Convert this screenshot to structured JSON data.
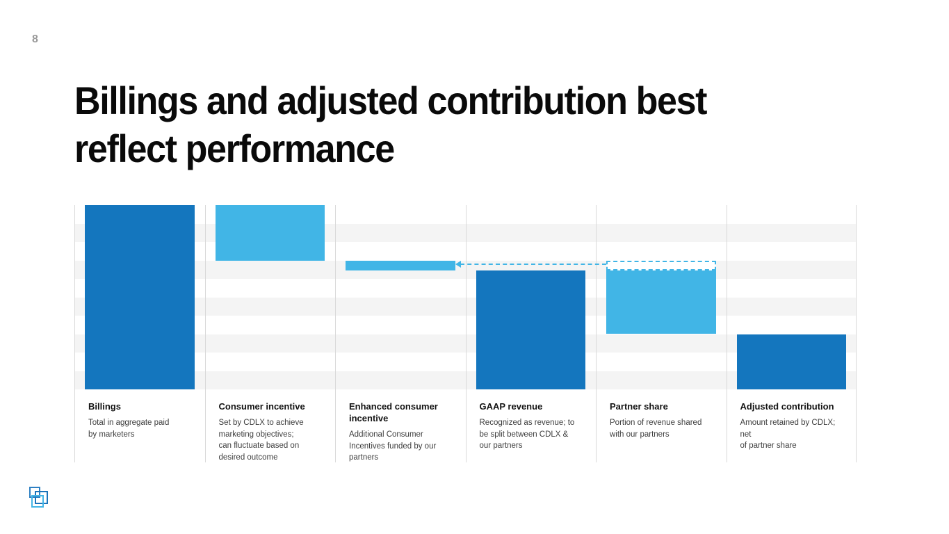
{
  "page_number": "8",
  "title": "Billings and adjusted contribution best\nreflect performance",
  "colors": {
    "dark_blue": "#1476BE",
    "light_blue": "#41B5E6",
    "stripe_gray": "#F4F4F4",
    "divider_gray": "#D9D9D9",
    "title_text": "#0A0A0A",
    "desc_text": "#3D3D3D",
    "page_number_gray": "#9A9A9A"
  },
  "chart_data": {
    "type": "bar",
    "subtype": "waterfall",
    "title": "",
    "xlabel": "",
    "ylabel": "",
    "value_axis": {
      "min": 0,
      "max": 100,
      "unit": "relative height, % of Billings (estimated from bars; no numeric axis shown)"
    },
    "grid": "horizontal alternating gray/white bands, 5 bands, no tick labels",
    "legend": "none",
    "columns": [
      {
        "label": "Billings",
        "desc": "Total in aggregate paid\nby marketers",
        "bar": {
          "from": 100,
          "to": 0,
          "color": "dark_blue"
        }
      },
      {
        "label": "Consumer incentive",
        "desc": "Set by CDLX to achieve\nmarketing objectives;\ncan fluctuate based on\ndesired outcome",
        "bar": {
          "from": 100,
          "to": 70,
          "color": "light_blue"
        }
      },
      {
        "label": "Enhanced consumer\nincentive",
        "desc": "Additional Consumer\nIncentives funded by our\npartners",
        "bar": {
          "from": 70,
          "to": 64.5,
          "color": "light_blue"
        }
      },
      {
        "label": "GAAP revenue",
        "desc": "Recognized as revenue; to\nbe split between CDLX &\nour partners",
        "bar": {
          "from": 64.5,
          "to": 0,
          "color": "dark_blue"
        }
      },
      {
        "label": "Partner share",
        "desc": "Portion of revenue shared\nwith our partners",
        "bar": {
          "from": 64.5,
          "to": 30,
          "color": "light_blue"
        },
        "dashed_cap": {
          "from": 70,
          "to": 64.5,
          "color": "light_blue"
        }
      },
      {
        "label": "Adjusted contribution",
        "desc": "Amount retained by CDLX; net\nof partner share",
        "bar": {
          "from": 30,
          "to": 0,
          "color": "dark_blue"
        }
      }
    ],
    "annotation": {
      "style": "dashed-arrow",
      "from_column": "Partner share",
      "to_column": "Enhanced consumer incentive"
    }
  },
  "logo": {
    "name": "cardlytics-logo"
  }
}
